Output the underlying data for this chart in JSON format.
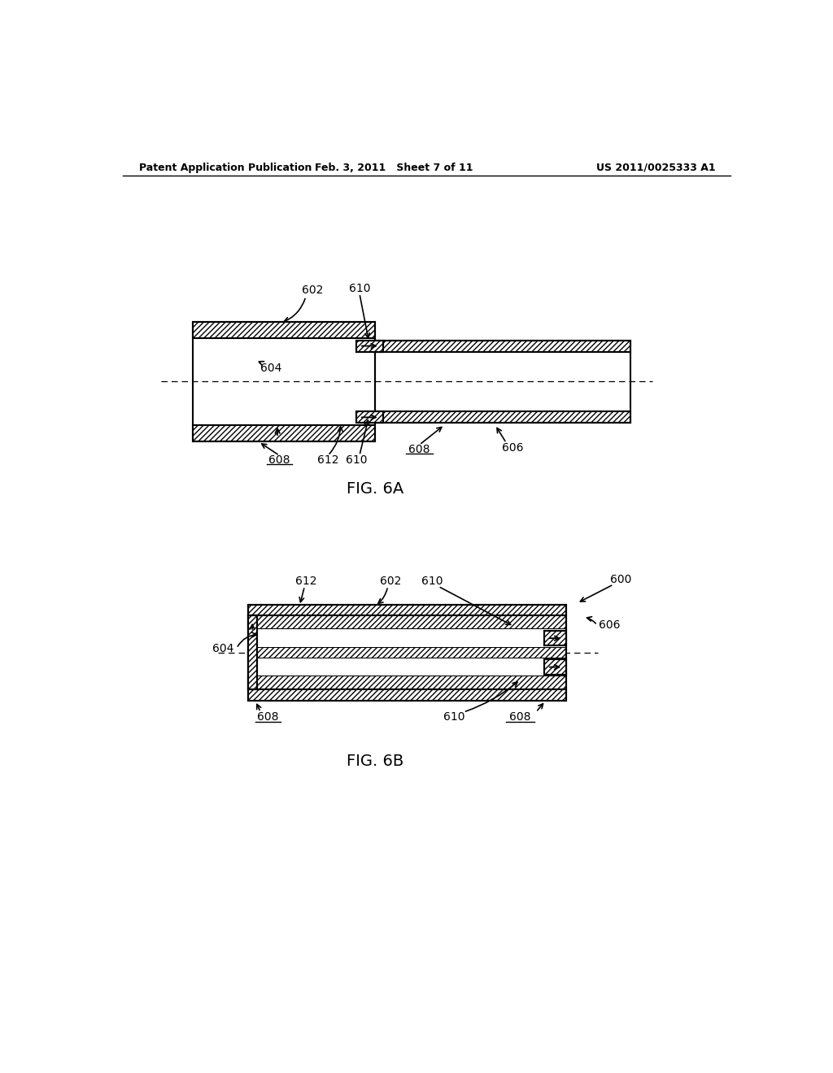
{
  "header_left": "Patent Application Publication",
  "header_center": "Feb. 3, 2011   Sheet 7 of 11",
  "header_right": "US 2011/0025333 A1",
  "fig6a_label": "FIG. 6A",
  "fig6b_label": "FIG. 6B",
  "bg_color": "#ffffff"
}
